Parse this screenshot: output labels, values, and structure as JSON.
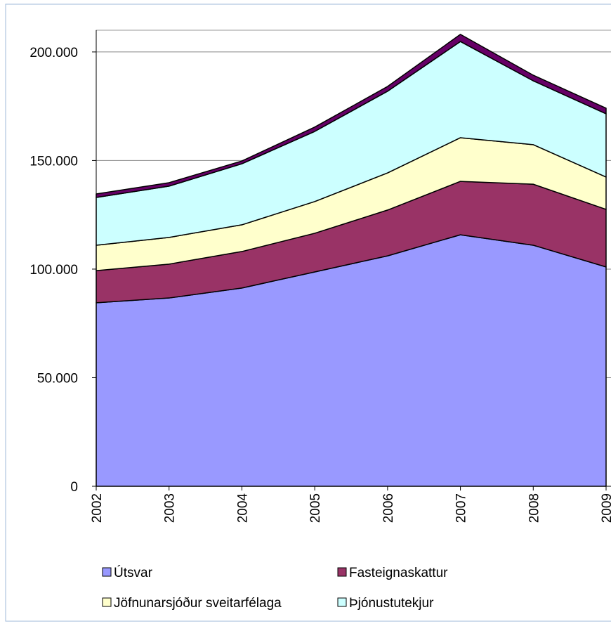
{
  "chart_data": {
    "type": "stacked_area",
    "categories": [
      "2002",
      "2003",
      "2004",
      "2005",
      "2006",
      "2007",
      "2008",
      "2009"
    ],
    "series": [
      {
        "name": "Útsvar",
        "color": "#9999ff",
        "values": [
          84500,
          86700,
          91300,
          98700,
          106100,
          115800,
          111000,
          101000
        ]
      },
      {
        "name": "Fasteignaskattur",
        "color": "#993366",
        "values": [
          14800,
          15600,
          16800,
          17800,
          21100,
          24600,
          28100,
          26500
        ]
      },
      {
        "name": "Jöfnunarsjóður sveitarfélaga",
        "color": "#ffffcc",
        "values": [
          11700,
          12300,
          12300,
          14600,
          17100,
          20100,
          18200,
          14900
        ]
      },
      {
        "name": "Þjónustutekjur",
        "color": "#ccffff",
        "values": [
          22000,
          23600,
          28100,
          32300,
          37600,
          44300,
          29400,
          29100
        ]
      },
      {
        "color": "#660066",
        "values": [
          1600,
          1600,
          1300,
          2000,
          2200,
          3300,
          2600,
          2600
        ]
      }
    ],
    "ylim": [
      0,
      210000
    ],
    "yticks": [
      {
        "value": 0,
        "label": "0"
      },
      {
        "value": 50000,
        "label": "50.000"
      },
      {
        "value": 100000,
        "label": "100.000"
      },
      {
        "value": 150000,
        "label": "150.000"
      },
      {
        "value": 200000,
        "label": "200.000"
      }
    ],
    "grid": true
  }
}
